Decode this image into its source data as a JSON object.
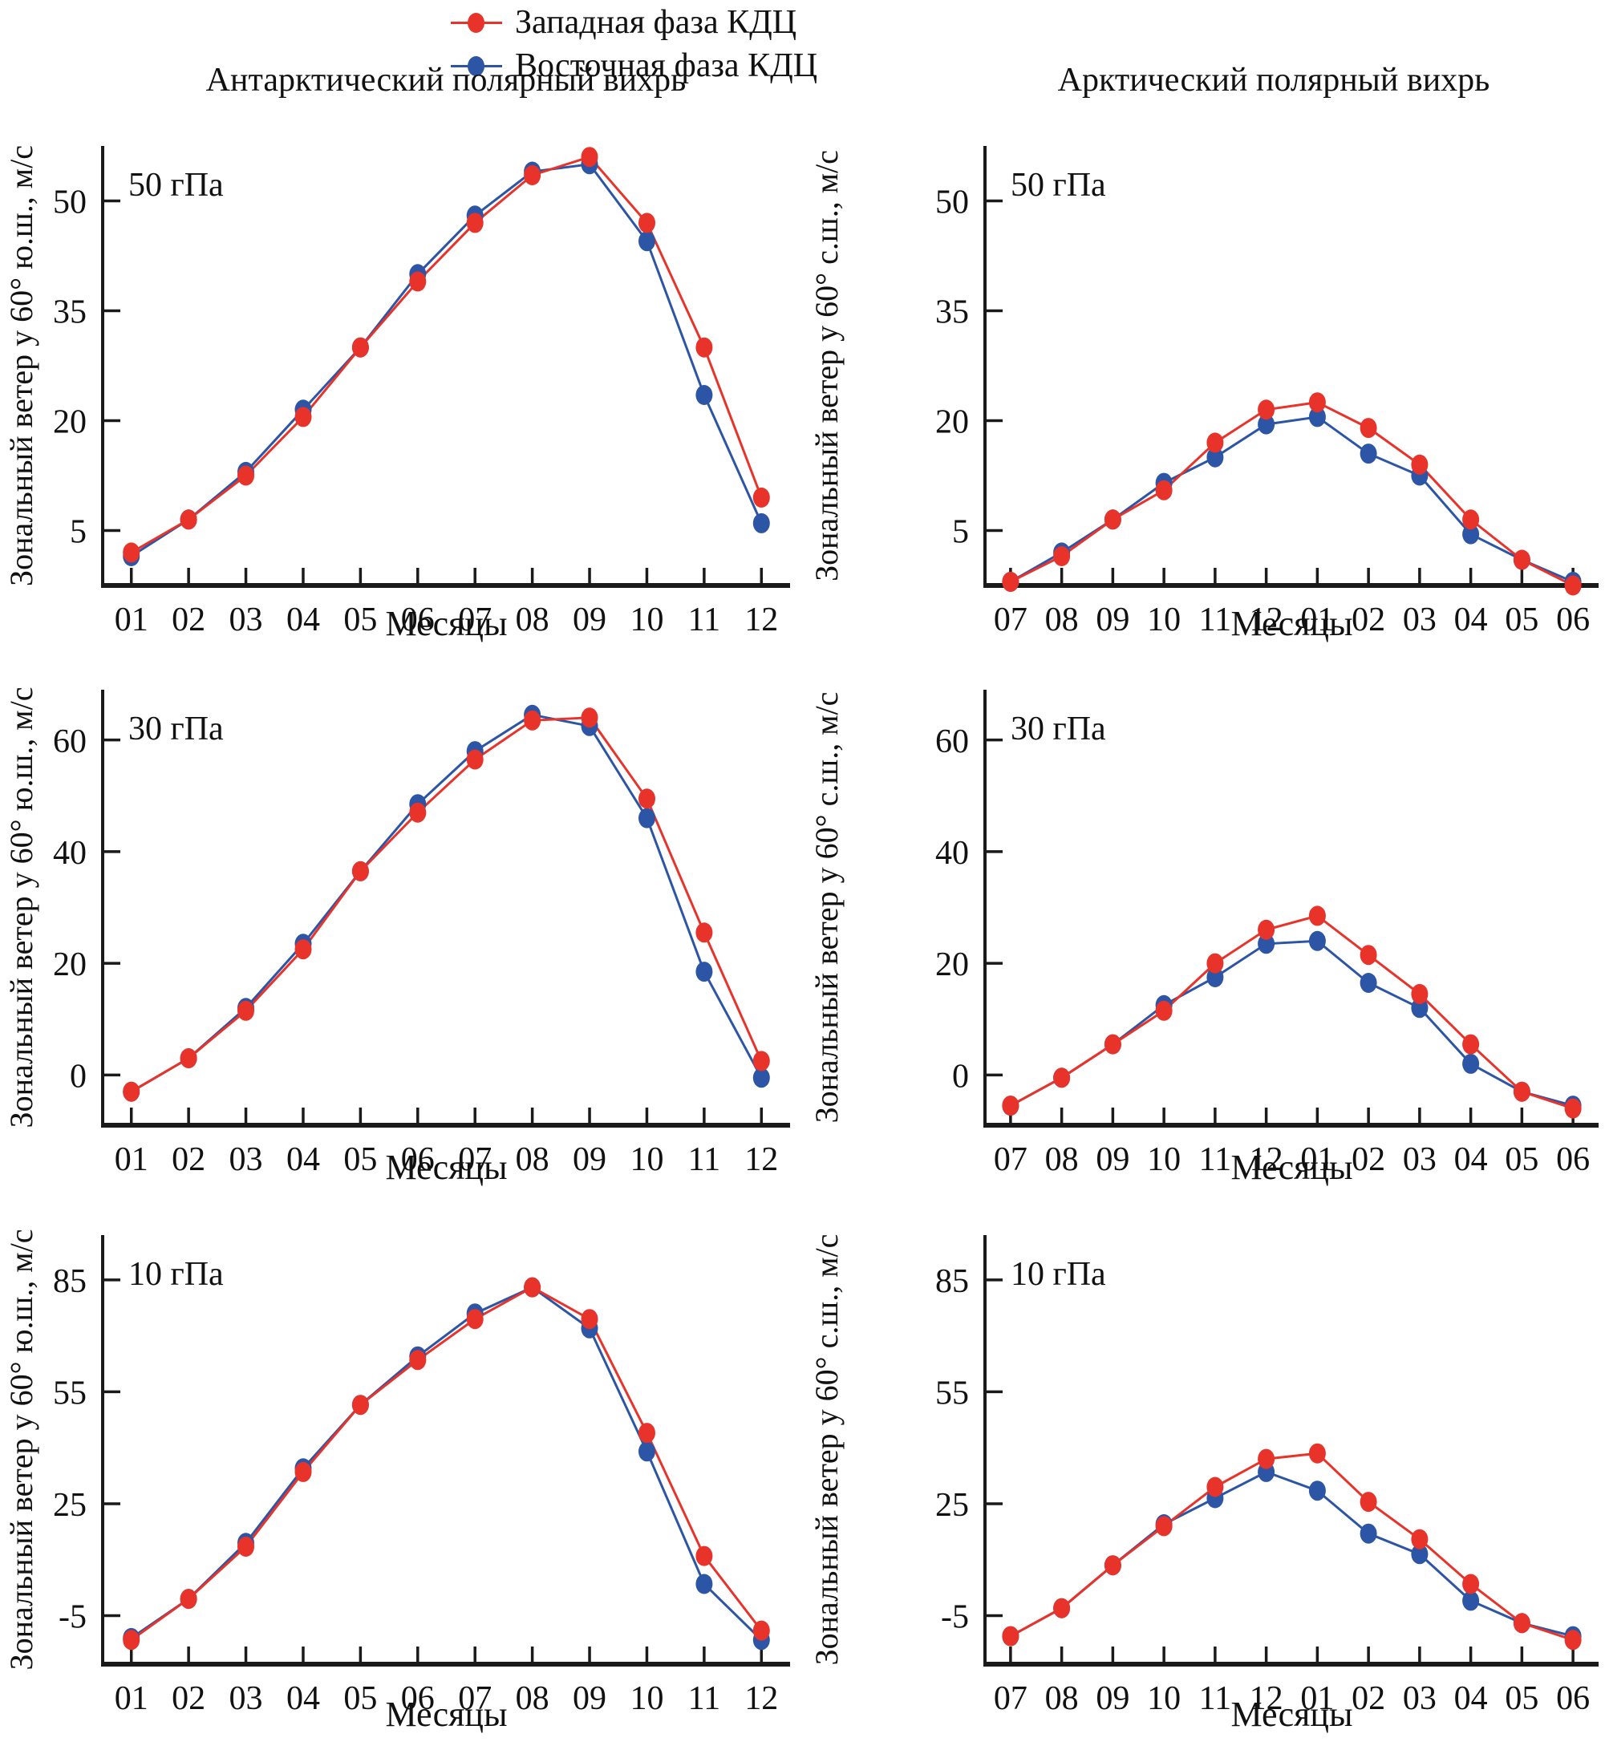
{
  "legend": {
    "items": [
      {
        "name": "western-phase",
        "label": "Западная фаза КДЦ",
        "color": "#e8332b"
      },
      {
        "name": "eastern-phase",
        "label": "Восточная фаза КДЦ",
        "color": "#2d55a5"
      }
    ]
  },
  "titles": {
    "left": "Антарктический полярный вихрь",
    "right": "Арктический полярный вихрь"
  },
  "xlabel": "Месяцы",
  "ylabels": {
    "left": "Зональный ветер у 60° ю.ш., м/с",
    "right": "Зональный ветер у 60° с.ш., м/с"
  },
  "colors": {
    "western": "#e8332b",
    "eastern": "#2d55a5",
    "axis": "#1a1a1a"
  },
  "chart_data": [
    {
      "id": "antarctic-50hpa",
      "type": "line",
      "row": 0,
      "col": 0,
      "pressure_label": "50 гПа",
      "title": "Антарктический полярный вихрь",
      "xlabel": "Месяцы",
      "ylabel": "Зональный ветер у 60° ю.ш., м/с",
      "x_categories": [
        "01",
        "02",
        "03",
        "04",
        "05",
        "06",
        "07",
        "08",
        "09",
        "10",
        "11",
        "12"
      ],
      "yticks": [
        5,
        20,
        35,
        50
      ],
      "ylim": [
        -2.5,
        57.5
      ],
      "series": [
        {
          "name": "Западная фаза КДЦ",
          "color_key": "western",
          "values": [
            2,
            6.5,
            12.5,
            20.5,
            30,
            39,
            47,
            53.5,
            56,
            47,
            30,
            9.5
          ]
        },
        {
          "name": "Восточная фаза КДЦ",
          "color_key": "eastern",
          "values": [
            1.5,
            6.5,
            13,
            21.5,
            30,
            40,
            48,
            54,
            55,
            44.5,
            23.5,
            6
          ]
        }
      ]
    },
    {
      "id": "arctic-50hpa",
      "type": "line",
      "row": 0,
      "col": 1,
      "pressure_label": "50 гПа",
      "title": "Арктический полярный вихрь",
      "xlabel": "Месяцы",
      "ylabel": "Зональный ветер у 60° с.ш., м/с",
      "x_categories": [
        "07",
        "08",
        "09",
        "10",
        "11",
        "12",
        "01",
        "02",
        "03",
        "04",
        "05",
        "06"
      ],
      "yticks": [
        5,
        20,
        35,
        50
      ],
      "ylim": [
        -2.5,
        57.5
      ],
      "series": [
        {
          "name": "Западная фаза КДЦ",
          "color_key": "western",
          "values": [
            -2,
            1.5,
            6.5,
            10.5,
            17,
            21.5,
            22.5,
            19,
            14,
            6.5,
            1,
            -2.5
          ]
        },
        {
          "name": "Восточная фаза КДЦ",
          "color_key": "eastern",
          "values": [
            -2,
            2,
            6.5,
            11.5,
            15,
            19.5,
            20.5,
            15.5,
            12.5,
            4.5,
            1,
            -2
          ]
        }
      ]
    },
    {
      "id": "antarctic-30hpa",
      "type": "line",
      "row": 1,
      "col": 0,
      "pressure_label": "30 гПа",
      "xlabel": "Месяцы",
      "ylabel": "Зональный ветер у 60° ю.ш., м/с",
      "x_categories": [
        "01",
        "02",
        "03",
        "04",
        "05",
        "06",
        "07",
        "08",
        "09",
        "10",
        "11",
        "12"
      ],
      "yticks": [
        0,
        20,
        40,
        60
      ],
      "ylim": [
        -9,
        69
      ],
      "series": [
        {
          "name": "Западная фаза КДЦ",
          "color_key": "western",
          "values": [
            -3,
            3,
            11.5,
            22.5,
            36.5,
            47,
            56.5,
            63.5,
            64,
            49.5,
            25.5,
            2.5
          ]
        },
        {
          "name": "Восточная фаза КДЦ",
          "color_key": "eastern",
          "values": [
            -3,
            3,
            12,
            23.5,
            36.5,
            48.5,
            58,
            64.5,
            62.5,
            46,
            18.5,
            -0.5
          ]
        }
      ]
    },
    {
      "id": "arctic-30hpa",
      "type": "line",
      "row": 1,
      "col": 1,
      "pressure_label": "30 гПа",
      "xlabel": "Месяцы",
      "ylabel": "Зональный ветер у 60° с.ш., м/с",
      "x_categories": [
        "07",
        "08",
        "09",
        "10",
        "11",
        "12",
        "01",
        "02",
        "03",
        "04",
        "05",
        "06"
      ],
      "yticks": [
        0,
        20,
        40,
        60
      ],
      "ylim": [
        -9,
        69
      ],
      "series": [
        {
          "name": "Западная фаза КДЦ",
          "color_key": "western",
          "values": [
            -5.5,
            -0.5,
            5.5,
            11.5,
            20,
            26,
            28.5,
            21.5,
            14.5,
            5.5,
            -3,
            -6
          ]
        },
        {
          "name": "Восточная фаза КДЦ",
          "color_key": "eastern",
          "values": [
            -5.5,
            -0.5,
            5.5,
            12.5,
            17.5,
            23.5,
            24,
            16.5,
            12,
            2,
            -3,
            -5.5
          ]
        }
      ]
    },
    {
      "id": "antarctic-10hpa",
      "type": "line",
      "row": 2,
      "col": 0,
      "pressure_label": "10 гПа",
      "xlabel": "Месяцы",
      "ylabel": "Зональный ветер у 60° ю.ш., м/с",
      "x_categories": [
        "01",
        "02",
        "03",
        "04",
        "05",
        "06",
        "07",
        "08",
        "09",
        "10",
        "11",
        "12"
      ],
      "yticks": [
        -5,
        25,
        55,
        85
      ],
      "ylim": [
        -18,
        97
      ],
      "series": [
        {
          "name": "Западная фаза КДЦ",
          "color_key": "western",
          "values": [
            -11.5,
            -0.5,
            13.5,
            33.5,
            51.5,
            63.5,
            74.5,
            83,
            74.5,
            44,
            11,
            -9
          ]
        },
        {
          "name": "Восточная фаза КДЦ",
          "color_key": "eastern",
          "values": [
            -11,
            -0.5,
            14.5,
            34.5,
            51.5,
            64.5,
            76,
            83,
            72,
            39,
            3.5,
            -11.5
          ]
        }
      ]
    },
    {
      "id": "arctic-10hpa",
      "type": "line",
      "row": 2,
      "col": 1,
      "pressure_label": "10 гПа",
      "xlabel": "Месяцы",
      "ylabel": "Зональный ветер у 60° с.ш., м/с",
      "x_categories": [
        "07",
        "08",
        "09",
        "10",
        "11",
        "12",
        "01",
        "02",
        "03",
        "04",
        "05",
        "06"
      ],
      "yticks": [
        -5,
        25,
        55,
        85
      ],
      "ylim": [
        -18,
        97
      ],
      "series": [
        {
          "name": "Западная фаза КДЦ",
          "color_key": "western",
          "values": [
            -10.5,
            -3,
            8.5,
            19,
            29.5,
            37,
            38.5,
            25.5,
            15.5,
            3.5,
            -7,
            -11.5
          ]
        },
        {
          "name": "Восточная фаза КДЦ",
          "color_key": "eastern",
          "values": [
            -10.5,
            -3,
            8.5,
            19.5,
            26.5,
            33.5,
            28.5,
            17,
            11.5,
            -1,
            -7,
            -10.5
          ]
        }
      ]
    }
  ]
}
